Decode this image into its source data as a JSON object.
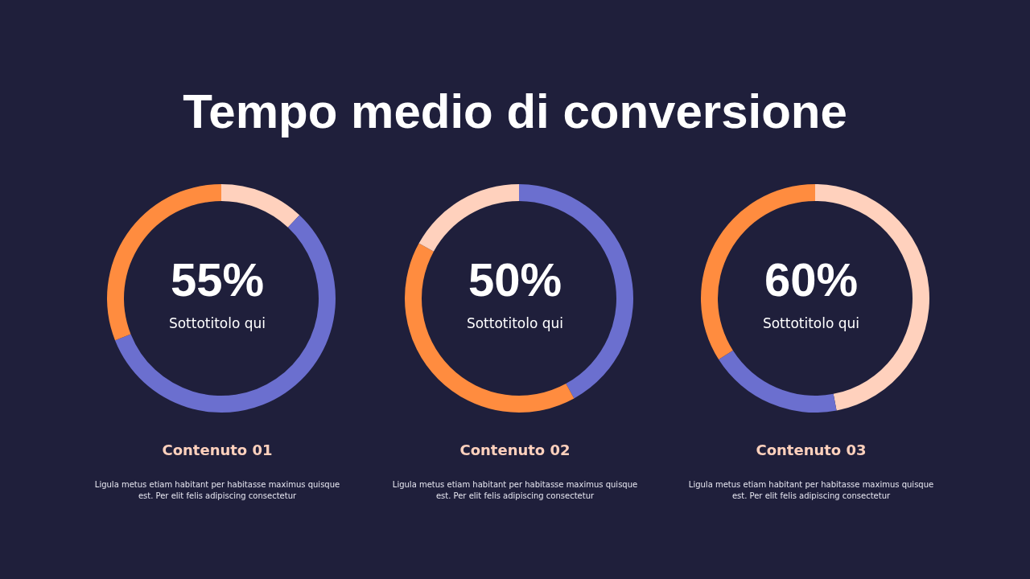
{
  "chart_data": [
    {
      "type": "donut",
      "title": "Tempo medio di conversione",
      "categories": [
        null,
        null,
        null
      ],
      "values": [
        12,
        57,
        31
      ],
      "colors": [
        "#ffd1bd",
        "#6b6fcf",
        "#ff8c3f"
      ],
      "annotations": [
        "55%",
        "Sottotitolo qui",
        "Contenuto 01",
        "Ligula metus etiam habitant per habitasse maximus quisque est. Per elit felis adipiscing consectetur"
      ]
    },
    {
      "type": "donut",
      "categories": [
        null,
        null,
        null
      ],
      "values": [
        42,
        41,
        17
      ],
      "colors": [
        "#6b6fcf",
        "#ff8c3f",
        "#ffd1bd"
      ],
      "annotations": [
        "50%",
        "Sottotitolo qui",
        "Contenuto 02",
        "Ligula metus etiam habitant per habitasse maximus quisque est. Per elit felis adipiscing consectetur"
      ]
    },
    {
      "type": "donut",
      "categories": [
        null,
        null,
        null
      ],
      "values": [
        47,
        19,
        34
      ],
      "colors": [
        "#ffd1bd",
        "#6b6fcf",
        "#ff8c3f"
      ],
      "annotations": [
        "60%",
        "Sottotitolo qui",
        "Contenuto 03",
        "Ligula metus etiam habitant per habitasse maximus quisque est. Per elit felis adipiscing consectetur"
      ]
    }
  ]
}
